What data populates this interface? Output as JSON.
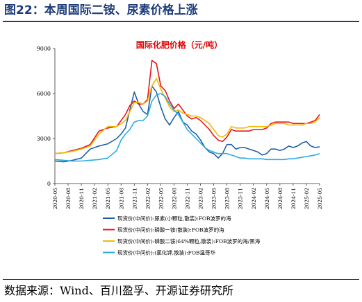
{
  "figure": {
    "title": "图22：本周国际二铵、尿素价格上涨",
    "source": "数据来源：Wind、百川盈孚、开源证券研究所"
  },
  "chart_data": {
    "type": "line",
    "title": "国际化肥价格（元/吨）",
    "title_color": "#e00000",
    "xlabel": "",
    "ylabel": "",
    "ylim": [
      0,
      9000
    ],
    "yticks": [
      "0",
      "3000",
      "6000",
      "9000"
    ],
    "xticks": [
      "2020-05",
      "2020-08",
      "2020-11",
      "2021-02",
      "2021-05",
      "2021-08",
      "2021-11",
      "2022-02",
      "2022-05",
      "2022-08",
      "2022-11",
      "2023-02",
      "2023-05",
      "2023-08",
      "2023-11",
      "2024-02",
      "2024-05",
      "2024-08",
      "2024-11",
      "2025-02",
      "2025-05"
    ],
    "grid": false,
    "legend_position": "bottom",
    "series": [
      {
        "name": "现货价(中间价):尿素(小颗粒,散装):FOB波罗的海",
        "color": "#1f5fa8",
        "points": [
          [
            "2020-05",
            1500
          ],
          [
            "2020-07",
            1450
          ],
          [
            "2020-09",
            1550
          ],
          [
            "2020-11",
            1700
          ],
          [
            "2021-01",
            2300
          ],
          [
            "2021-03",
            2500
          ],
          [
            "2021-05",
            2650
          ],
          [
            "2021-07",
            3000
          ],
          [
            "2021-08",
            3300
          ],
          [
            "2021-09",
            3700
          ],
          [
            "2021-10",
            4900
          ],
          [
            "2021-11",
            6100
          ],
          [
            "2021-12",
            5300
          ],
          [
            "2022-01",
            4800
          ],
          [
            "2022-02",
            4600
          ],
          [
            "2022-03",
            6500
          ],
          [
            "2022-04",
            6100
          ],
          [
            "2022-05",
            5100
          ],
          [
            "2022-06",
            4300
          ],
          [
            "2022-07",
            3900
          ],
          [
            "2022-08",
            4400
          ],
          [
            "2022-09",
            4800
          ],
          [
            "2022-10",
            4100
          ],
          [
            "2022-11",
            3900
          ],
          [
            "2022-12",
            3500
          ],
          [
            "2023-01",
            3300
          ],
          [
            "2023-02",
            2900
          ],
          [
            "2023-03",
            2400
          ],
          [
            "2023-04",
            2100
          ],
          [
            "2023-05",
            2000
          ],
          [
            "2023-06",
            1700
          ],
          [
            "2023-07",
            2000
          ],
          [
            "2023-08",
            2600
          ],
          [
            "2023-09",
            2600
          ],
          [
            "2023-10",
            2300
          ],
          [
            "2023-11",
            2400
          ],
          [
            "2023-12",
            2400
          ],
          [
            "2024-01",
            2300
          ],
          [
            "2024-02",
            2200
          ],
          [
            "2024-03",
            2100
          ],
          [
            "2024-04",
            1900
          ],
          [
            "2024-05",
            2000
          ],
          [
            "2024-06",
            2300
          ],
          [
            "2024-07",
            2300
          ],
          [
            "2024-08",
            2200
          ],
          [
            "2024-09",
            2300
          ],
          [
            "2024-10",
            2500
          ],
          [
            "2024-11",
            2400
          ],
          [
            "2024-12",
            2500
          ],
          [
            "2025-01",
            2700
          ],
          [
            "2025-02",
            2800
          ],
          [
            "2025-03",
            2500
          ],
          [
            "2025-04",
            2400
          ],
          [
            "2025-05",
            2450
          ]
        ]
      },
      {
        "name": "现货价(中间价):磷酸一铵(散装):FOB波罗的海",
        "color": "#e8141c",
        "points": [
          [
            "2020-05",
            2000
          ],
          [
            "2020-07",
            2050
          ],
          [
            "2020-09",
            2200
          ],
          [
            "2020-11",
            2350
          ],
          [
            "2021-01",
            2600
          ],
          [
            "2021-03",
            3500
          ],
          [
            "2021-05",
            3700
          ],
          [
            "2021-07",
            3800
          ],
          [
            "2021-09",
            4600
          ],
          [
            "2021-10",
            5200
          ],
          [
            "2021-11",
            5500
          ],
          [
            "2021-12",
            5300
          ],
          [
            "2022-01",
            5300
          ],
          [
            "2022-02",
            5600
          ],
          [
            "2022-03",
            8200
          ],
          [
            "2022-04",
            8000
          ],
          [
            "2022-05",
            6500
          ],
          [
            "2022-06",
            6200
          ],
          [
            "2022-07",
            5500
          ],
          [
            "2022-08",
            5000
          ],
          [
            "2022-09",
            5300
          ],
          [
            "2022-10",
            4900
          ],
          [
            "2022-11",
            4500
          ],
          [
            "2022-12",
            4300
          ],
          [
            "2023-01",
            4400
          ],
          [
            "2023-02",
            4200
          ],
          [
            "2023-03",
            3900
          ],
          [
            "2023-04",
            3600
          ],
          [
            "2023-05",
            3200
          ],
          [
            "2023-06",
            2900
          ],
          [
            "2023-07",
            2800
          ],
          [
            "2023-08",
            3100
          ],
          [
            "2023-09",
            3600
          ],
          [
            "2023-10",
            3500
          ],
          [
            "2023-11",
            3500
          ],
          [
            "2023-12",
            3500
          ],
          [
            "2024-01",
            3500
          ],
          [
            "2024-02",
            3600
          ],
          [
            "2024-03",
            3600
          ],
          [
            "2024-04",
            3600
          ],
          [
            "2024-05",
            3700
          ],
          [
            "2024-06",
            4000
          ],
          [
            "2024-07",
            4100
          ],
          [
            "2024-08",
            4100
          ],
          [
            "2024-09",
            4100
          ],
          [
            "2024-10",
            4100
          ],
          [
            "2024-11",
            4000
          ],
          [
            "2024-12",
            4000
          ],
          [
            "2025-01",
            4000
          ],
          [
            "2025-02",
            4000
          ],
          [
            "2025-03",
            4100
          ],
          [
            "2025-04",
            4200
          ],
          [
            "2025-05",
            4600
          ]
        ]
      },
      {
        "name": "现货价(中间价):磷酸二铵(64%颗粒,散装):FOB波罗的海/黑海",
        "color": "#f5b800",
        "points": [
          [
            "2020-05",
            2000
          ],
          [
            "2020-07",
            2050
          ],
          [
            "2020-09",
            2150
          ],
          [
            "2020-11",
            2300
          ],
          [
            "2021-01",
            2500
          ],
          [
            "2021-03",
            3300
          ],
          [
            "2021-05",
            3800
          ],
          [
            "2021-07",
            3800
          ],
          [
            "2021-09",
            4200
          ],
          [
            "2021-10",
            4800
          ],
          [
            "2021-11",
            5400
          ],
          [
            "2021-12",
            5400
          ],
          [
            "2022-01",
            5300
          ],
          [
            "2022-02",
            5500
          ],
          [
            "2022-03",
            6500
          ],
          [
            "2022-04",
            7000
          ],
          [
            "2022-05",
            6300
          ],
          [
            "2022-06",
            5700
          ],
          [
            "2022-07",
            5100
          ],
          [
            "2022-08",
            4800
          ],
          [
            "2022-09",
            4900
          ],
          [
            "2022-10",
            4700
          ],
          [
            "2022-11",
            4600
          ],
          [
            "2022-12",
            4500
          ],
          [
            "2023-01",
            4500
          ],
          [
            "2023-02",
            4400
          ],
          [
            "2023-03",
            4200
          ],
          [
            "2023-04",
            4000
          ],
          [
            "2023-05",
            3600
          ],
          [
            "2023-06",
            3200
          ],
          [
            "2023-07",
            3100
          ],
          [
            "2023-08",
            3300
          ],
          [
            "2023-09",
            3800
          ],
          [
            "2023-10",
            3700
          ],
          [
            "2023-11",
            3700
          ],
          [
            "2023-12",
            3700
          ],
          [
            "2024-01",
            3800
          ],
          [
            "2024-02",
            3800
          ],
          [
            "2024-03",
            3800
          ],
          [
            "2024-04",
            3800
          ],
          [
            "2024-05",
            3800
          ],
          [
            "2024-06",
            3900
          ],
          [
            "2024-07",
            4000
          ],
          [
            "2024-08",
            4000
          ],
          [
            "2024-09",
            4000
          ],
          [
            "2024-10",
            3900
          ],
          [
            "2024-11",
            3900
          ],
          [
            "2024-12",
            3900
          ],
          [
            "2025-01",
            3900
          ],
          [
            "2025-02",
            4000
          ],
          [
            "2025-03",
            4000
          ],
          [
            "2025-04",
            4100
          ],
          [
            "2025-05",
            4400
          ]
        ]
      },
      {
        "name": "现货价(中间价):(氯化钾,散装):FOB温哥华",
        "color": "#29abe2",
        "points": [
          [
            "2020-05",
            1600
          ],
          [
            "2020-07",
            1550
          ],
          [
            "2020-09",
            1500
          ],
          [
            "2020-11",
            1500
          ],
          [
            "2021-01",
            1550
          ],
          [
            "2021-03",
            1600
          ],
          [
            "2021-05",
            1700
          ],
          [
            "2021-07",
            2200
          ],
          [
            "2021-08",
            2900
          ],
          [
            "2021-09",
            3300
          ],
          [
            "2021-10",
            3600
          ],
          [
            "2021-11",
            4100
          ],
          [
            "2021-12",
            4200
          ],
          [
            "2022-01",
            4200
          ],
          [
            "2022-02",
            4500
          ],
          [
            "2022-03",
            5500
          ],
          [
            "2022-04",
            5900
          ],
          [
            "2022-05",
            6000
          ],
          [
            "2022-06",
            5800
          ],
          [
            "2022-07",
            5300
          ],
          [
            "2022-08",
            4900
          ],
          [
            "2022-09",
            4600
          ],
          [
            "2022-10",
            4100
          ],
          [
            "2022-11",
            3600
          ],
          [
            "2022-12",
            3300
          ],
          [
            "2023-01",
            3000
          ],
          [
            "2023-02",
            2700
          ],
          [
            "2023-03",
            2400
          ],
          [
            "2023-04",
            2200
          ],
          [
            "2023-05",
            2100
          ],
          [
            "2023-06",
            2000
          ],
          [
            "2023-07",
            2000
          ],
          [
            "2023-08",
            2000
          ],
          [
            "2023-09",
            1900
          ],
          [
            "2023-10",
            1800
          ],
          [
            "2023-11",
            1700
          ],
          [
            "2023-12",
            1700
          ],
          [
            "2024-01",
            1650
          ],
          [
            "2024-02",
            1650
          ],
          [
            "2024-03",
            1650
          ],
          [
            "2024-04",
            1650
          ],
          [
            "2024-05",
            1600
          ],
          [
            "2024-06",
            1600
          ],
          [
            "2024-07",
            1600
          ],
          [
            "2024-08",
            1600
          ],
          [
            "2024-09",
            1600
          ],
          [
            "2024-10",
            1650
          ],
          [
            "2024-11",
            1650
          ],
          [
            "2024-12",
            1700
          ],
          [
            "2025-01",
            1750
          ],
          [
            "2025-02",
            1800
          ],
          [
            "2025-03",
            1850
          ],
          [
            "2025-04",
            1900
          ],
          [
            "2025-05",
            2000
          ]
        ]
      }
    ]
  }
}
